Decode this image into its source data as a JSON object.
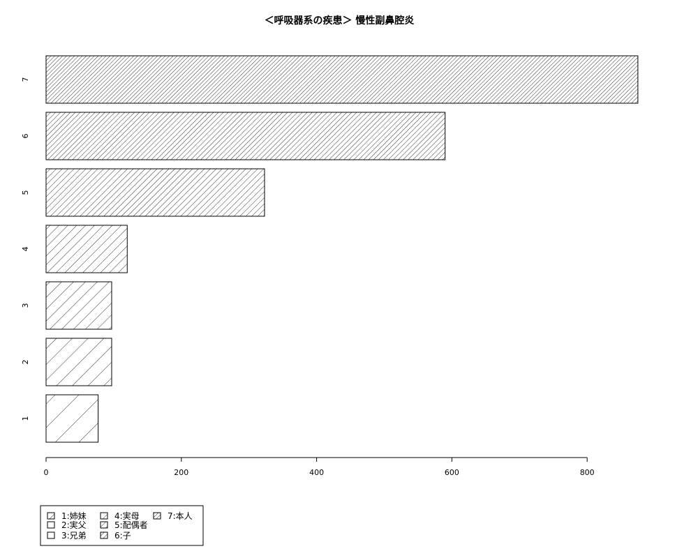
{
  "chart_data": {
    "type": "bar",
    "orientation": "horizontal",
    "title": "＜呼吸器系の疾患＞ 慢性副鼻腔炎",
    "xlabel": "",
    "ylabel": "",
    "categories": [
      "1",
      "2",
      "3",
      "4",
      "5",
      "6",
      "7"
    ],
    "values": [
      77,
      97,
      97,
      120,
      323,
      590,
      875
    ],
    "xlim": [
      0,
      875
    ],
    "xticks": [
      "0",
      "200",
      "400",
      "600",
      "800"
    ],
    "grid": false,
    "fill": "diagonal hatching, density increasing with category",
    "legend": {
      "position": "bottom-left",
      "entries": [
        "1:姉妹",
        "2:実父",
        "3:兄弟",
        "4:実母",
        "5:配偶者",
        "6:子",
        "7:本人"
      ]
    }
  }
}
